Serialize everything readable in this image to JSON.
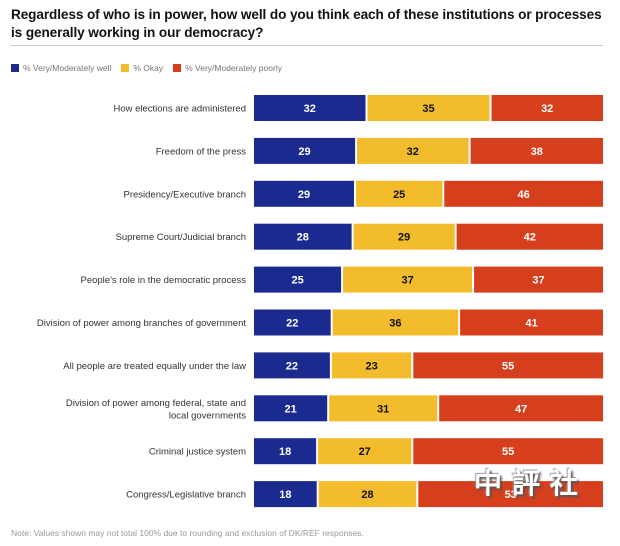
{
  "title": "Regardless of who is in power, how well do you think each of these institutions or processes is generally working in our democracy?",
  "legend": [
    {
      "label": "% Very/Moderately well",
      "color": "#1b2a8f"
    },
    {
      "label": "% Okay",
      "color": "#f2bc2c"
    },
    {
      "label": "% Very/Moderately poorly",
      "color": "#d63f1d"
    }
  ],
  "note": "Note: Values shown may not total 100% due to rounding and exclusion of DK/REF responses.",
  "watermark": "中評社",
  "chart_data": {
    "type": "bar",
    "orientation": "horizontal",
    "stacked": true,
    "title": "Regardless of who is in power, how well do you think each of these institutions or processes is generally working in our democracy?",
    "xlabel": "",
    "ylabel": "",
    "legend_position": "top-left",
    "grid": false,
    "categories": [
      "How elections are administered",
      "Freedom of the press",
      "Presidency/Executive branch",
      "Supreme Court/Judicial branch",
      "People's role in the democratic process",
      "Division of power among branches of government",
      "All people are treated equally under the law",
      "Division of power among federal, state and local governments",
      "Criminal justice system",
      "Congress/Legislative branch"
    ],
    "series": [
      {
        "name": "% Very/Moderately well",
        "color": "#1b2a8f",
        "label_color": "#ffffff",
        "values": [
          32,
          29,
          29,
          28,
          25,
          22,
          22,
          21,
          18,
          18
        ]
      },
      {
        "name": "% Okay",
        "color": "#f2bc2c",
        "label_color": "#111111",
        "values": [
          35,
          32,
          25,
          29,
          37,
          36,
          23,
          31,
          27,
          28
        ]
      },
      {
        "name": "% Very/Moderately poorly",
        "color": "#d63f1d",
        "label_color": "#ffffff",
        "values": [
          32,
          38,
          46,
          42,
          37,
          41,
          55,
          47,
          55,
          53
        ]
      }
    ]
  }
}
